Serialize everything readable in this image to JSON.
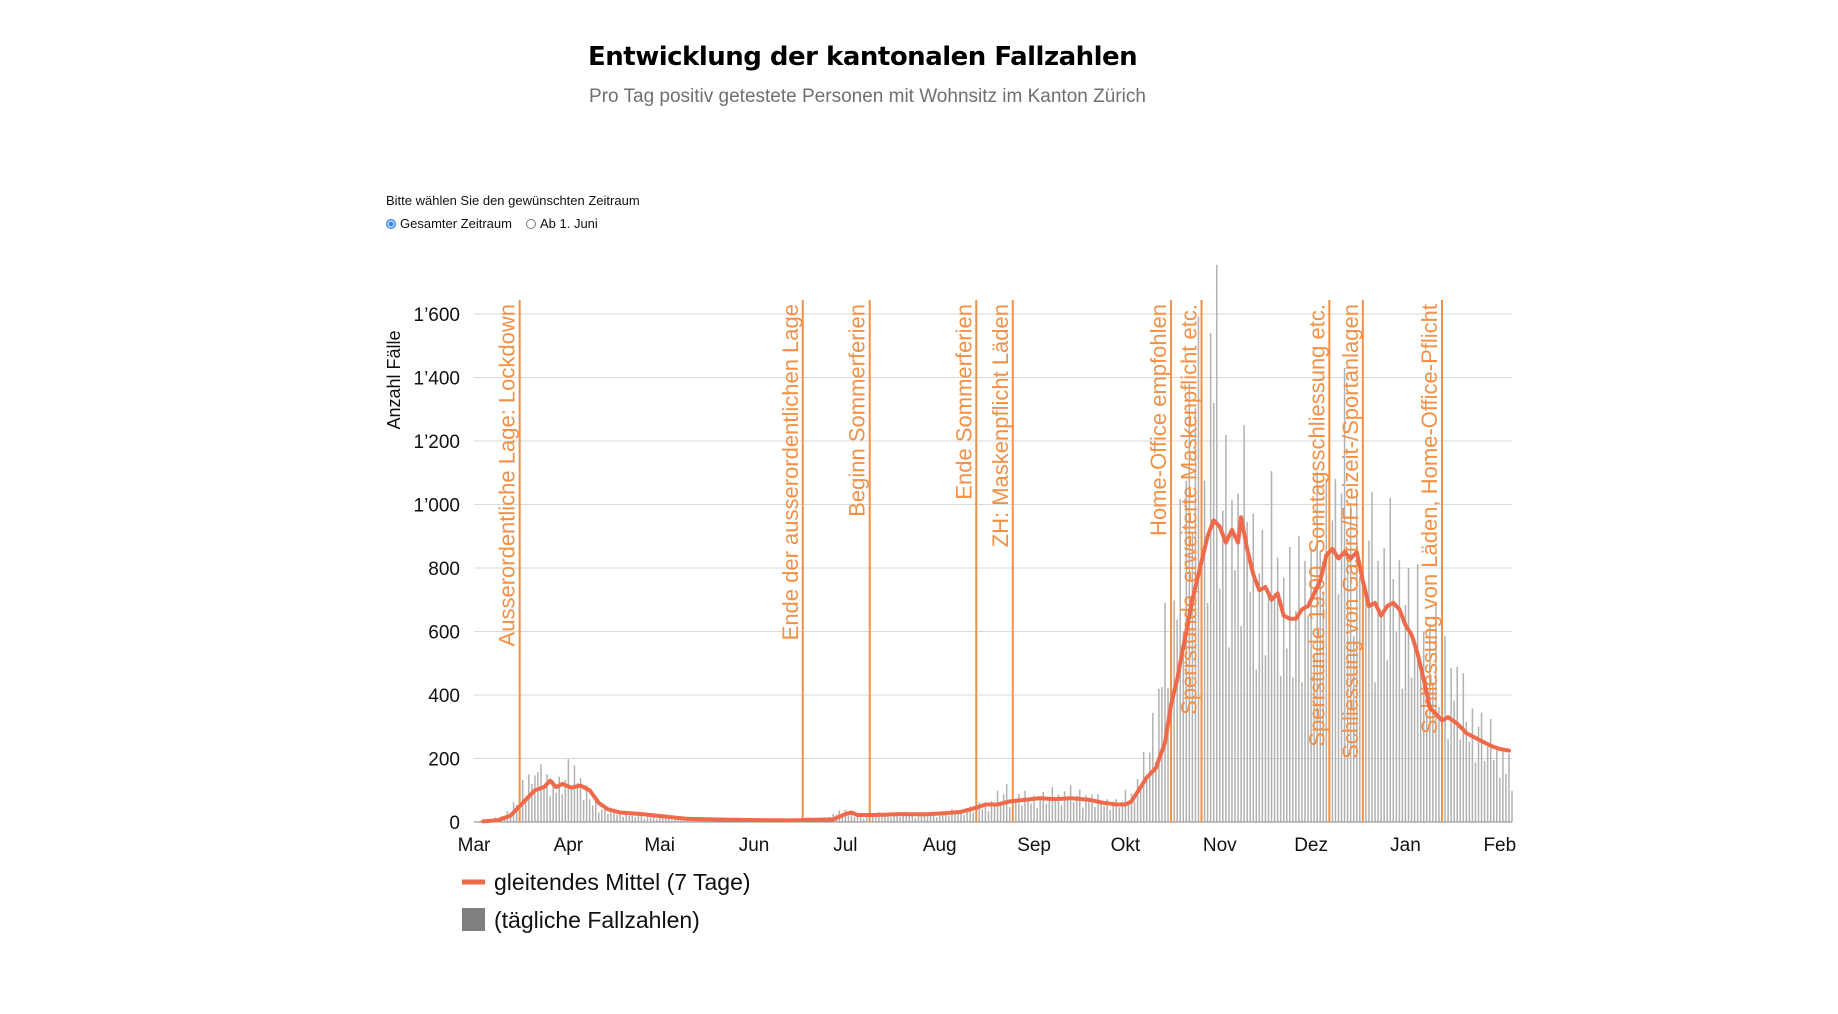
{
  "title": "Entwicklung der kantonalen Fallzahlen",
  "subtitle": "Pro Tag positiv getestete Personen mit Wohnsitz im Kanton Zürich",
  "period_selector": {
    "prompt": "Bitte wählen Sie den gewünschten Zeitraum",
    "options": [
      {
        "label": "Gesamter Zeitraum",
        "checked": true
      },
      {
        "label": "Ab 1. Juni",
        "checked": false
      }
    ]
  },
  "colors": {
    "avg_line": "#ee6a4a",
    "bars": "#b2b2b2",
    "events": "#f39046",
    "grid": "#d9d9d9",
    "legend_bar": "#7f7f7f"
  },
  "chart_data": {
    "type": "bar",
    "ylabel": "Anzahl Fälle",
    "ylim": [
      0,
      1600
    ],
    "yticks": [
      0,
      200,
      400,
      600,
      800,
      1000,
      1200,
      1400,
      1600
    ],
    "ytick_labels": [
      "0",
      "200",
      "400",
      "600",
      "800",
      "1’000",
      "1’200",
      "1’400",
      "1’600"
    ],
    "xlim_days": [
      0,
      341
    ],
    "x_months": [
      {
        "label": "Mar",
        "day": 0
      },
      {
        "label": "Apr",
        "day": 31
      },
      {
        "label": "Mai",
        "day": 61
      },
      {
        "label": "Jun",
        "day": 92
      },
      {
        "label": "Jul",
        "day": 122
      },
      {
        "label": "Aug",
        "day": 153
      },
      {
        "label": "Sep",
        "day": 184
      },
      {
        "label": "Okt",
        "day": 214
      },
      {
        "label": "Nov",
        "day": 245
      },
      {
        "label": "Dez",
        "day": 275
      },
      {
        "label": "Jan",
        "day": 306
      },
      {
        "label": "Feb",
        "day": 337
      }
    ],
    "daily_keyframes": [
      [
        0,
        2
      ],
      [
        5,
        6
      ],
      [
        10,
        20
      ],
      [
        14,
        60
      ],
      [
        16,
        120
      ],
      [
        18,
        150
      ],
      [
        19,
        100
      ],
      [
        20,
        210
      ],
      [
        22,
        140
      ],
      [
        24,
        150
      ],
      [
        26,
        120
      ],
      [
        28,
        110
      ],
      [
        30,
        140
      ],
      [
        32,
        190
      ],
      [
        33,
        170
      ],
      [
        35,
        120
      ],
      [
        38,
        80
      ],
      [
        42,
        40
      ],
      [
        47,
        30
      ],
      [
        55,
        20
      ],
      [
        62,
        15
      ],
      [
        70,
        8
      ],
      [
        80,
        5
      ],
      [
        92,
        4
      ],
      [
        100,
        4
      ],
      [
        108,
        6
      ],
      [
        113,
        8
      ],
      [
        118,
        20
      ],
      [
        121,
        45
      ],
      [
        123,
        25
      ],
      [
        128,
        20
      ],
      [
        133,
        25
      ],
      [
        138,
        25
      ],
      [
        145,
        22
      ],
      [
        153,
        28
      ],
      [
        160,
        35
      ],
      [
        165,
        45
      ],
      [
        170,
        60
      ],
      [
        175,
        100
      ],
      [
        177,
        70
      ],
      [
        180,
        80
      ],
      [
        185,
        75
      ],
      [
        190,
        85
      ],
      [
        197,
        90
      ],
      [
        205,
        70
      ],
      [
        211,
        60
      ],
      [
        216,
        90
      ],
      [
        219,
        140
      ],
      [
        222,
        230
      ],
      [
        225,
        400
      ],
      [
        227,
        600
      ],
      [
        229,
        700
      ],
      [
        231,
        850
      ],
      [
        233,
        1000
      ],
      [
        235,
        1150
      ],
      [
        237,
        1450
      ],
      [
        239,
        1000
      ],
      [
        241,
        1150
      ],
      [
        243,
        1650
      ],
      [
        245,
        1050
      ],
      [
        248,
        1000
      ],
      [
        251,
        900
      ],
      [
        254,
        1050
      ],
      [
        257,
        800
      ],
      [
        260,
        750
      ],
      [
        263,
        900
      ],
      [
        266,
        700
      ],
      [
        269,
        650
      ],
      [
        272,
        800
      ],
      [
        275,
        750
      ],
      [
        278,
        950
      ],
      [
        281,
        1000
      ],
      [
        283,
        900
      ],
      [
        285,
        1150
      ],
      [
        288,
        1000
      ],
      [
        290,
        950
      ],
      [
        293,
        1000
      ],
      [
        296,
        800
      ],
      [
        299,
        750
      ],
      [
        302,
        850
      ],
      [
        305,
        700
      ],
      [
        308,
        650
      ],
      [
        312,
        600
      ],
      [
        315,
        550
      ],
      [
        318,
        500
      ],
      [
        322,
        450
      ],
      [
        326,
        350
      ],
      [
        330,
        300
      ],
      [
        334,
        250
      ],
      [
        337,
        230
      ],
      [
        339,
        190
      ],
      [
        341,
        140
      ]
    ],
    "daily_noise": [
      1.0,
      0.6,
      1.1,
      0.8,
      1.3,
      0.7,
      0.95,
      1.2,
      0.55,
      1.05,
      0.85,
      1.15,
      0.65,
      1.25,
      0.9,
      0.75,
      1.1,
      0.6,
      1.0,
      1.2,
      0.7,
      0.9,
      1.3,
      0.8
    ],
    "avg_keyframes": [
      [
        3,
        2
      ],
      [
        8,
        6
      ],
      [
        12,
        20
      ],
      [
        15,
        50
      ],
      [
        18,
        80
      ],
      [
        20,
        100
      ],
      [
        23,
        110
      ],
      [
        25,
        130
      ],
      [
        27,
        110
      ],
      [
        29,
        120
      ],
      [
        32,
        108
      ],
      [
        35,
        115
      ],
      [
        38,
        100
      ],
      [
        41,
        60
      ],
      [
        44,
        40
      ],
      [
        48,
        30
      ],
      [
        55,
        25
      ],
      [
        62,
        18
      ],
      [
        70,
        10
      ],
      [
        80,
        8
      ],
      [
        92,
        6
      ],
      [
        105,
        5
      ],
      [
        110,
        7
      ],
      [
        118,
        8
      ],
      [
        122,
        25
      ],
      [
        124,
        30
      ],
      [
        126,
        22
      ],
      [
        132,
        22
      ],
      [
        140,
        25
      ],
      [
        148,
        24
      ],
      [
        155,
        28
      ],
      [
        160,
        32
      ],
      [
        165,
        45
      ],
      [
        168,
        55
      ],
      [
        172,
        55
      ],
      [
        176,
        65
      ],
      [
        181,
        70
      ],
      [
        186,
        75
      ],
      [
        191,
        72
      ],
      [
        196,
        75
      ],
      [
        202,
        70
      ],
      [
        207,
        60
      ],
      [
        211,
        55
      ],
      [
        214,
        55
      ],
      [
        216,
        65
      ],
      [
        219,
        110
      ],
      [
        221,
        140
      ],
      [
        224,
        170
      ],
      [
        227,
        250
      ],
      [
        229,
        370
      ],
      [
        231,
        450
      ],
      [
        234,
        600
      ],
      [
        236,
        700
      ],
      [
        239,
        820
      ],
      [
        241,
        900
      ],
      [
        243,
        950
      ],
      [
        245,
        930
      ],
      [
        247,
        880
      ],
      [
        249,
        920
      ],
      [
        251,
        880
      ],
      [
        252,
        960
      ],
      [
        254,
        860
      ],
      [
        256,
        780
      ],
      [
        258,
        730
      ],
      [
        260,
        740
      ],
      [
        262,
        700
      ],
      [
        264,
        720
      ],
      [
        266,
        650
      ],
      [
        268,
        640
      ],
      [
        270,
        640
      ],
      [
        272,
        670
      ],
      [
        274,
        680
      ],
      [
        276,
        720
      ],
      [
        278,
        760
      ],
      [
        280,
        840
      ],
      [
        282,
        860
      ],
      [
        284,
        830
      ],
      [
        286,
        850
      ],
      [
        288,
        830
      ],
      [
        290,
        850
      ],
      [
        292,
        760
      ],
      [
        294,
        680
      ],
      [
        296,
        690
      ],
      [
        298,
        650
      ],
      [
        300,
        680
      ],
      [
        302,
        690
      ],
      [
        304,
        670
      ],
      [
        306,
        620
      ],
      [
        308,
        590
      ],
      [
        310,
        530
      ],
      [
        312,
        450
      ],
      [
        314,
        360
      ],
      [
        316,
        340
      ],
      [
        318,
        320
      ],
      [
        320,
        330
      ],
      [
        323,
        310
      ],
      [
        326,
        280
      ],
      [
        330,
        260
      ],
      [
        334,
        240
      ],
      [
        337,
        230
      ],
      [
        340,
        225
      ]
    ],
    "events": [
      {
        "day": 15,
        "label": "Ausserordentliche Lage: Lockdown"
      },
      {
        "day": 108,
        "label": "Ende der ausserordentlichen Lage"
      },
      {
        "day": 130,
        "label": "Beginn Sommerferien"
      },
      {
        "day": 165,
        "label": "Ende Sommerferien"
      },
      {
        "day": 177,
        "label": "ZH: Maskenpflicht Läden"
      },
      {
        "day": 229,
        "label": "Home-Office empfohlen"
      },
      {
        "day": 239,
        "label": "Sperrstunde, erweiterte Maskenpflicht etc."
      },
      {
        "day": 281,
        "label": "Sperrstunde 19.00, Sonntagsschliessung etc."
      },
      {
        "day": 292,
        "label": "Schliessung von Gastro/Freizeit-/Sportanlagen"
      },
      {
        "day": 318,
        "label": "Schliessung von Läden, Home-Office-Pflicht"
      }
    ],
    "legend": [
      {
        "label": "gleitendes Mittel (7 Tage)",
        "kind": "line"
      },
      {
        "label": "(tägliche Fallzahlen)",
        "kind": "bar"
      }
    ]
  }
}
